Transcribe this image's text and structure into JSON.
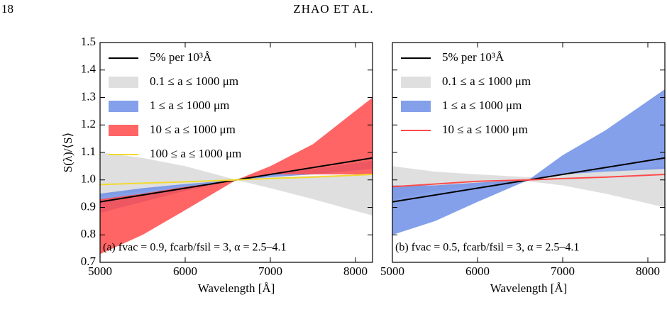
{
  "header": {
    "page": "18",
    "running_head": "ZHAO ET AL."
  },
  "chart_data": [
    {
      "type": "band",
      "ylabel": "S(λ)/⟨S⟩",
      "xlabel": "Wavelength [Å]",
      "annotation": "(a) fvac = 0.9, fcarb/fsil = 3, α = 2.5–4.1",
      "xlim": [
        5000,
        8200
      ],
      "xticks": [
        5000,
        6000,
        7000,
        8000
      ],
      "ylim": [
        0.7,
        1.5
      ],
      "show_ytick_labels": true,
      "yticks": [
        0.7,
        0.8,
        0.9,
        {
          "value": 1,
          "label": "1.0"
        },
        1.1,
        1.2,
        1.3,
        1.4,
        1.5
      ],
      "x": [
        5000,
        5500,
        6000,
        6600,
        7000,
        7500,
        8200
      ],
      "series": [
        {
          "name": "5% per 10³Å",
          "kind": "line",
          "color": "#000000",
          "x": [
            5000,
            8200
          ],
          "values": [
            0.92,
            1.08
          ]
        },
        {
          "name": "0.1 ≤ a ≤ 1000 μm",
          "kind": "band",
          "color": "#d9d9d9",
          "upper": [
            1.1,
            1.08,
            1.05,
            1.0,
            1.01,
            1.015,
            1.02
          ],
          "lower": [
            0.94,
            0.96,
            0.98,
            1.0,
            0.97,
            0.93,
            0.87
          ]
        },
        {
          "name": "1 ≤ a ≤ 1000 μm",
          "kind": "band",
          "color": "#6f8fe6",
          "upper": [
            0.95,
            0.97,
            0.985,
            1.0,
            1.02,
            1.04,
            1.07
          ],
          "lower": [
            0.88,
            0.92,
            0.96,
            1.0,
            1.01,
            1.02,
            1.04
          ]
        },
        {
          "name": "10 ≤ a ≤ 1000 μm",
          "kind": "band",
          "color": "#ff4a4a",
          "upper": [
            0.93,
            0.95,
            0.975,
            1.0,
            1.05,
            1.13,
            1.3
          ],
          "lower": [
            0.73,
            0.8,
            0.89,
            1.0,
            1.02,
            1.02,
            1.02
          ]
        },
        {
          "name": "100 ≤ a ≤ 1000 μm",
          "kind": "line",
          "color": "#f2d92e",
          "values": [
            0.983,
            0.988,
            0.993,
            1.0,
            1.005,
            1.01,
            1.02
          ]
        }
      ]
    },
    {
      "type": "band",
      "xlabel": "Wavelength [Å]",
      "annotation": "(b) fvac = 0.5, fcarb/fsil = 3, α = 2.5–4.1",
      "xlim": [
        5000,
        8200
      ],
      "xticks": [
        5000,
        6000,
        7000,
        8000
      ],
      "ylim": [
        0.7,
        1.5
      ],
      "show_ytick_labels": false,
      "yticks": [
        0.7,
        0.8,
        0.9,
        1,
        1.1,
        1.2,
        1.3,
        1.4,
        1.5
      ],
      "x": [
        5000,
        5500,
        6000,
        6600,
        7000,
        7500,
        8200
      ],
      "series": [
        {
          "name": "5% per 10³Å",
          "kind": "line",
          "color": "#000000",
          "x": [
            5000,
            8200
          ],
          "values": [
            0.92,
            1.08
          ]
        },
        {
          "name": "0.1 ≤ a ≤ 1000 μm",
          "kind": "band",
          "color": "#d9d9d9",
          "upper": [
            1.05,
            1.03,
            1.02,
            1.01,
            1.02,
            1.03,
            1.05
          ],
          "lower": [
            0.93,
            0.96,
            0.98,
            0.995,
            0.98,
            0.95,
            0.9
          ]
        },
        {
          "name": "1 ≤ a ≤ 1000 μm",
          "kind": "band",
          "color": "#6f8fe6",
          "upper": [
            0.98,
            0.98,
            0.99,
            1.0,
            1.09,
            1.18,
            1.33
          ],
          "lower": [
            0.8,
            0.85,
            0.92,
            1.0,
            1.02,
            1.03,
            1.04
          ]
        },
        {
          "name": "10 ≤ a ≤ 1000 μm",
          "kind": "line",
          "color": "#ff4a4a",
          "values": [
            0.975,
            0.985,
            0.995,
            1.0,
            1.005,
            1.01,
            1.02
          ]
        }
      ]
    }
  ]
}
